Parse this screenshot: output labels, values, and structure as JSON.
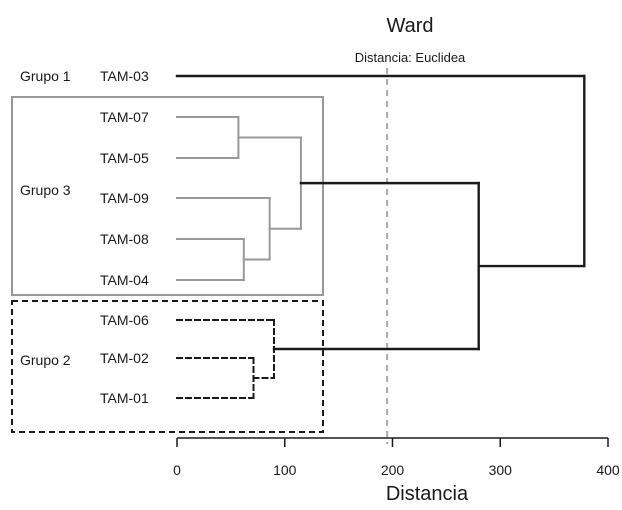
{
  "title": "Ward",
  "subtitle": "Distancia: Euclidea",
  "xlabel": "Distancia",
  "colors": {
    "group1": "#1a1a1a",
    "group2": "#1a1a1a",
    "group3": "#999999",
    "reference_line": "#aaaaaa"
  },
  "groups": [
    {
      "id": "g1",
      "label": "Grupo 1",
      "box": "none",
      "color": "#1a1a1a"
    },
    {
      "id": "g3",
      "label": "Grupo 3",
      "box": "solid-gray",
      "color": "#999999"
    },
    {
      "id": "g2",
      "label": "Grupo 2",
      "box": "dashed-black",
      "color": "#1a1a1a"
    }
  ],
  "chart_data": {
    "type": "dendrogram",
    "method": "Ward",
    "metric": "Euclidea",
    "title": "Ward",
    "subtitle": "Distancia: Euclidea",
    "xlabel": "Distancia",
    "xlim": [
      0,
      400
    ],
    "xticks": [
      0,
      100,
      200,
      300,
      400
    ],
    "reference_line": 195,
    "leaves": [
      {
        "label": "TAM-03",
        "group": "g1"
      },
      {
        "label": "TAM-07",
        "group": "g3"
      },
      {
        "label": "TAM-05",
        "group": "g3"
      },
      {
        "label": "TAM-09",
        "group": "g3"
      },
      {
        "label": "TAM-08",
        "group": "g3"
      },
      {
        "label": "TAM-04",
        "group": "g3"
      },
      {
        "label": "TAM-06",
        "group": "g2"
      },
      {
        "label": "TAM-02",
        "group": "g2"
      },
      {
        "label": "TAM-01",
        "group": "g2"
      }
    ],
    "merges": [
      {
        "id": "m1",
        "a": "TAM-07",
        "b": "TAM-05",
        "height": 57,
        "group": "g3"
      },
      {
        "id": "m2",
        "a": "TAM-08",
        "b": "TAM-04",
        "height": 62,
        "group": "g3"
      },
      {
        "id": "m3",
        "a": "TAM-09",
        "b": "m2",
        "height": 86,
        "group": "g3"
      },
      {
        "id": "m4",
        "a": "m1",
        "b": "m3",
        "height": 115,
        "group": "g3"
      },
      {
        "id": "m5",
        "a": "TAM-02",
        "b": "TAM-01",
        "height": 71,
        "group": "g2"
      },
      {
        "id": "m6",
        "a": "TAM-06",
        "b": "m5",
        "height": 90,
        "group": "g2"
      },
      {
        "id": "m7",
        "a": "m4",
        "b": "m6",
        "height": 280,
        "group": "root"
      },
      {
        "id": "m8",
        "a": "TAM-03",
        "b": "m7",
        "height": 378,
        "group": "root"
      }
    ]
  }
}
